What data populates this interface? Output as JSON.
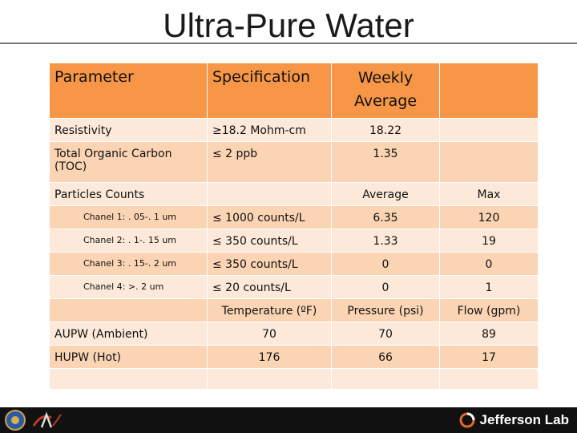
{
  "title": "Ultra-Pure Water",
  "table": {
    "header": {
      "col1": "Parameter",
      "col2": "Specification",
      "col3": "Weekly Average",
      "col4": ""
    },
    "resistivity": {
      "label": "Resistivity",
      "spec": "≥18.2 Mohm-cm",
      "avg": "18.22"
    },
    "toc": {
      "label": "Total Organic Carbon (TOC)",
      "spec": "≤ 2 ppb",
      "avg": "1.35"
    },
    "particles": {
      "label": "Particles Counts",
      "avg_label": "Average",
      "max_label": "Max"
    },
    "channels": [
      {
        "label": "Chanel 1: . 05-. 1 um",
        "spec": "≤ 1000 counts/L",
        "avg": "6.35",
        "max": "120"
      },
      {
        "label": "Chanel 2: . 1-. 15 um",
        "spec": "≤ 350 counts/L",
        "avg": "1.33",
        "max": "19"
      },
      {
        "label": "Chanel 3: . 15-. 2 um",
        "spec": "≤ 350 counts/L",
        "avg": "0",
        "max": "0"
      },
      {
        "label": "Chanel 4: >. 2 um",
        "spec": "≤ 20 counts/L",
        "avg": "0",
        "max": "1"
      }
    ],
    "conditions_header": {
      "temp": "Temperature (ºF)",
      "pressure": "Pressure (psi)",
      "flow": "Flow (gpm)"
    },
    "conditions": [
      {
        "label": "AUPW (Ambient)",
        "temp": "70",
        "pressure": "70",
        "flow": "89"
      },
      {
        "label": "HUPW (Hot)",
        "temp": "176",
        "pressure": "66",
        "flow": "17"
      }
    ]
  },
  "footer": {
    "brand": "Jefferson Lab"
  },
  "colors": {
    "header": "#f79646",
    "row_light": "#fde9d9",
    "row_dark": "#fbd4b4",
    "footer": "#111111"
  }
}
